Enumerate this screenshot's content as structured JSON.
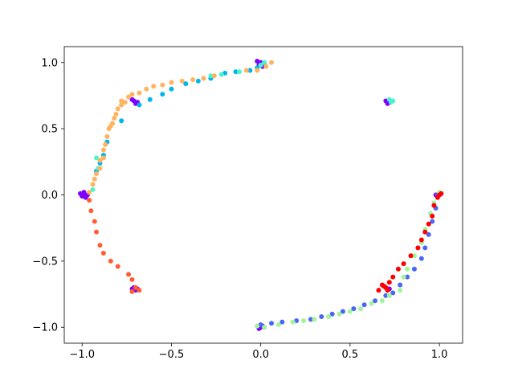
{
  "chart_data": {
    "type": "scatter",
    "title": "",
    "xlabel": "",
    "ylabel": "",
    "xlim": [
      -1.1,
      1.13
    ],
    "ylim": [
      -1.12,
      1.12
    ],
    "xticks": [
      -1.0,
      -0.5,
      0.0,
      0.5,
      1.0
    ],
    "yticks": [
      -1.0,
      -0.5,
      0.0,
      0.5,
      1.0
    ],
    "xtick_labels": [
      "−1.0",
      "−0.5",
      "0.0",
      "0.5",
      "1.0"
    ],
    "ytick_labels": [
      "−1.0",
      "−0.5",
      "0.0",
      "0.5",
      "1.0"
    ],
    "grid": false,
    "legend": "none",
    "series": [
      {
        "color": "#8000ff",
        "points": [
          [
            -0.99,
            0.0
          ],
          [
            -1.0,
            -0.01
          ],
          [
            -0.98,
            -0.02
          ],
          [
            -1.01,
            0.01
          ],
          [
            -0.97,
            0.0
          ],
          [
            -0.99,
            0.02
          ],
          [
            -0.71,
            0.71
          ],
          [
            -0.7,
            0.69
          ],
          [
            -0.72,
            0.72
          ],
          [
            -0.69,
            0.7
          ],
          [
            0.0,
            1.0
          ],
          [
            0.02,
            0.99
          ],
          [
            -0.02,
            1.01
          ],
          [
            0.01,
            0.97
          ],
          [
            -0.01,
            0.98
          ],
          [
            0.72,
            0.7
          ],
          [
            0.7,
            0.71
          ],
          [
            0.71,
            0.69
          ],
          [
            1.0,
            0.0
          ],
          [
            0.99,
            -0.01
          ],
          [
            1.01,
            0.01
          ],
          [
            0.98,
            0.0
          ],
          [
            0.7,
            -0.7
          ],
          [
            0.71,
            -0.71
          ],
          [
            0.69,
            -0.69
          ],
          [
            0.72,
            -0.71
          ],
          [
            0.0,
            -1.0
          ],
          [
            0.01,
            -0.99
          ],
          [
            -0.01,
            -1.01
          ],
          [
            0.02,
            -1.0
          ],
          [
            -0.7,
            -0.72
          ],
          [
            -0.71,
            -0.7
          ],
          [
            -0.72,
            -0.71
          ],
          [
            -0.69,
            -0.71
          ]
        ]
      },
      {
        "color": "#00b5eb",
        "points": [
          [
            -0.68,
            0.68
          ],
          [
            -0.62,
            0.72
          ],
          [
            -0.55,
            0.76
          ],
          [
            -0.5,
            0.8
          ],
          [
            -0.42,
            0.84
          ],
          [
            -0.35,
            0.86
          ],
          [
            -0.28,
            0.88
          ],
          [
            -0.2,
            0.92
          ],
          [
            -0.14,
            0.93
          ],
          [
            -0.06,
            0.94
          ],
          [
            -0.02,
            0.96
          ],
          [
            -0.86,
            0.4
          ],
          [
            -0.88,
            0.3
          ],
          [
            -0.9,
            0.24
          ],
          [
            -0.92,
            0.18
          ],
          [
            -0.78,
            0.56
          ]
        ]
      },
      {
        "color": "#4df3ce",
        "points": [
          [
            -0.28,
            0.9
          ],
          [
            -0.22,
            0.91
          ],
          [
            -0.12,
            0.93
          ],
          [
            0.0,
            0.98
          ],
          [
            0.02,
            1.0
          ],
          [
            0.72,
            0.72
          ],
          [
            0.74,
            0.71
          ],
          [
            0.73,
            0.7
          ],
          [
            -0.92,
            0.28
          ],
          [
            -0.91,
            0.2
          ],
          [
            -0.94,
            0.04
          ]
        ]
      },
      {
        "color": "#ffb360",
        "points": [
          [
            -0.96,
            0.02
          ],
          [
            -0.94,
            0.08
          ],
          [
            -0.93,
            0.12
          ],
          [
            -0.92,
            0.16
          ],
          [
            -0.9,
            0.2
          ],
          [
            -0.88,
            0.28
          ],
          [
            -0.88,
            0.34
          ],
          [
            -0.87,
            0.38
          ],
          [
            -0.86,
            0.44
          ],
          [
            -0.85,
            0.5
          ],
          [
            -0.83,
            0.54
          ],
          [
            -0.82,
            0.58
          ],
          [
            -0.81,
            0.61
          ],
          [
            -0.8,
            0.65
          ],
          [
            -0.78,
            0.68
          ],
          [
            -0.76,
            0.7
          ],
          [
            -0.74,
            0.74
          ],
          [
            -0.72,
            0.76
          ],
          [
            -0.68,
            0.77
          ],
          [
            -0.64,
            0.8
          ],
          [
            -0.6,
            0.82
          ],
          [
            -0.55,
            0.83
          ],
          [
            -0.5,
            0.85
          ],
          [
            -0.44,
            0.86
          ],
          [
            -0.38,
            0.87
          ],
          [
            -0.32,
            0.88
          ],
          [
            -0.26,
            0.9
          ],
          [
            -0.08,
            0.94
          ],
          [
            -0.02,
            0.94
          ],
          [
            0.03,
            0.97
          ],
          [
            0.06,
            1.0
          ],
          [
            -0.78,
            0.71
          ],
          [
            -0.84,
            0.52
          ],
          [
            -0.9,
            0.26
          ]
        ]
      },
      {
        "color": "#ff5e33",
        "points": [
          [
            -0.96,
            -0.04
          ],
          [
            -0.95,
            -0.12
          ],
          [
            -0.93,
            -0.2
          ],
          [
            -0.92,
            -0.28
          ],
          [
            -0.9,
            -0.38
          ],
          [
            -0.88,
            -0.44
          ],
          [
            -0.84,
            -0.5
          ],
          [
            -0.8,
            -0.54
          ],
          [
            -0.74,
            -0.6
          ],
          [
            -0.72,
            -0.64
          ],
          [
            -0.7,
            -0.7
          ],
          [
            -0.68,
            -0.72
          ],
          [
            -0.72,
            -0.73
          ]
        ]
      },
      {
        "color": "#4a66f6",
        "points": [
          [
            0.0,
            -0.98
          ],
          [
            0.06,
            -0.97
          ],
          [
            0.12,
            -0.96
          ],
          [
            0.2,
            -0.95
          ],
          [
            0.28,
            -0.94
          ],
          [
            0.34,
            -0.92
          ],
          [
            0.4,
            -0.9
          ],
          [
            0.46,
            -0.88
          ],
          [
            0.52,
            -0.86
          ],
          [
            0.58,
            -0.83
          ],
          [
            0.64,
            -0.8
          ],
          [
            0.7,
            -0.76
          ],
          [
            0.74,
            -0.74
          ],
          [
            0.78,
            -0.68
          ],
          [
            0.82,
            -0.62
          ],
          [
            0.86,
            -0.56
          ],
          [
            0.9,
            -0.48
          ],
          [
            0.92,
            -0.4
          ],
          [
            0.94,
            -0.3
          ],
          [
            0.96,
            -0.2
          ],
          [
            0.98,
            -0.1
          ],
          [
            0.99,
            0.0
          ]
        ]
      },
      {
        "color": "#a2f49a",
        "points": [
          [
            -0.02,
            -0.99
          ],
          [
            0.02,
            -1.0
          ],
          [
            0.1,
            -0.98
          ],
          [
            0.18,
            -0.96
          ],
          [
            0.24,
            -0.95
          ],
          [
            0.3,
            -0.94
          ],
          [
            0.38,
            -0.92
          ],
          [
            0.44,
            -0.9
          ],
          [
            0.5,
            -0.88
          ],
          [
            0.56,
            -0.86
          ],
          [
            0.62,
            -0.82
          ],
          [
            0.68,
            -0.8
          ],
          [
            0.72,
            -0.76
          ],
          [
            0.8,
            -0.62
          ],
          [
            0.82,
            -0.56
          ],
          [
            0.86,
            -0.46
          ],
          [
            0.9,
            -0.36
          ],
          [
            0.92,
            -0.26
          ],
          [
            0.95,
            -0.14
          ],
          [
            0.97,
            -0.06
          ],
          [
            1.0,
            0.02
          ],
          [
            0.78,
            -0.72
          ]
        ]
      },
      {
        "color": "#ff0000",
        "points": [
          [
            0.66,
            -0.72
          ],
          [
            0.68,
            -0.68
          ],
          [
            0.72,
            -0.66
          ],
          [
            0.74,
            -0.62
          ],
          [
            0.77,
            -0.56
          ],
          [
            0.8,
            -0.52
          ],
          [
            0.84,
            -0.46
          ],
          [
            0.88,
            -0.4
          ],
          [
            0.9,
            -0.34
          ],
          [
            0.92,
            -0.28
          ],
          [
            0.94,
            -0.22
          ],
          [
            0.96,
            -0.16
          ],
          [
            0.97,
            -0.08
          ],
          [
            0.99,
            -0.02
          ],
          [
            1.0,
            0.0
          ],
          [
            1.01,
            0.01
          ],
          [
            0.7,
            -0.7
          ],
          [
            0.71,
            -0.72
          ],
          [
            0.69,
            -0.69
          ]
        ]
      }
    ]
  }
}
